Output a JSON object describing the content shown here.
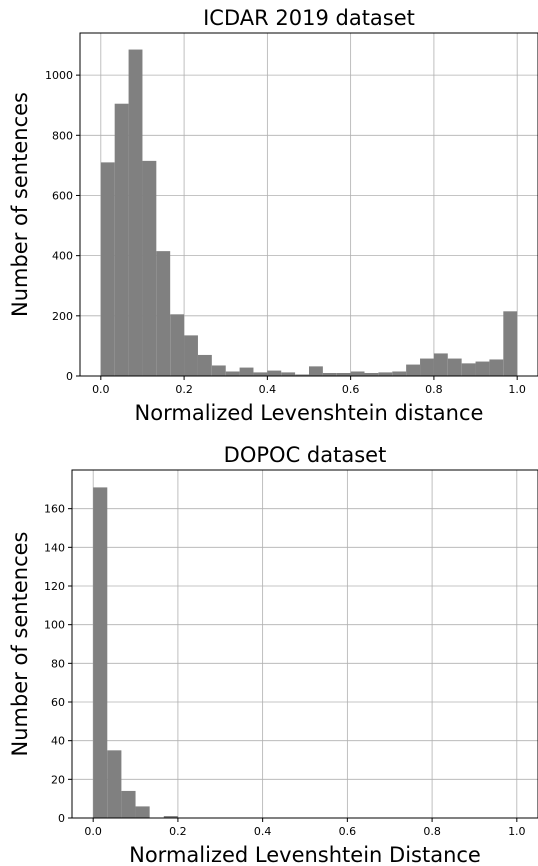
{
  "chart_data": [
    {
      "type": "bar",
      "title": "ICDAR 2019 dataset",
      "xlabel": "Normalized Levenshtein distance",
      "ylabel": "Number of sentences",
      "xlim": [
        -0.05,
        1.05
      ],
      "ylim": [
        0,
        1140
      ],
      "xticks": [
        "0.0",
        "0.2",
        "0.4",
        "0.6",
        "0.8",
        "1.0"
      ],
      "yticks": [
        "0",
        "200",
        "400",
        "600",
        "800",
        "1000"
      ],
      "bin_width": 0.0333,
      "grid": true,
      "bar_color": "#808080",
      "bins": [
        {
          "x": 0.0,
          "value": 710
        },
        {
          "x": 0.0333,
          "value": 905
        },
        {
          "x": 0.0667,
          "value": 1085
        },
        {
          "x": 0.1,
          "value": 715
        },
        {
          "x": 0.1333,
          "value": 415
        },
        {
          "x": 0.1667,
          "value": 205
        },
        {
          "x": 0.2,
          "value": 135
        },
        {
          "x": 0.2333,
          "value": 70
        },
        {
          "x": 0.2667,
          "value": 35
        },
        {
          "x": 0.3,
          "value": 15
        },
        {
          "x": 0.3333,
          "value": 28
        },
        {
          "x": 0.3667,
          "value": 12
        },
        {
          "x": 0.4,
          "value": 18
        },
        {
          "x": 0.4333,
          "value": 12
        },
        {
          "x": 0.4667,
          "value": 5
        },
        {
          "x": 0.5,
          "value": 32
        },
        {
          "x": 0.5333,
          "value": 10
        },
        {
          "x": 0.5667,
          "value": 10
        },
        {
          "x": 0.6,
          "value": 15
        },
        {
          "x": 0.6333,
          "value": 10
        },
        {
          "x": 0.6667,
          "value": 12
        },
        {
          "x": 0.7,
          "value": 15
        },
        {
          "x": 0.7333,
          "value": 38
        },
        {
          "x": 0.7667,
          "value": 58
        },
        {
          "x": 0.8,
          "value": 75
        },
        {
          "x": 0.8333,
          "value": 58
        },
        {
          "x": 0.8667,
          "value": 42
        },
        {
          "x": 0.9,
          "value": 48
        },
        {
          "x": 0.9333,
          "value": 55
        },
        {
          "x": 0.9667,
          "value": 215
        }
      ]
    },
    {
      "type": "bar",
      "title": "DOPOC dataset",
      "xlabel": "Normalized Levenshtein Distance",
      "ylabel": "Number of sentences",
      "xlim": [
        -0.05,
        1.05
      ],
      "ylim": [
        0,
        180
      ],
      "xticks": [
        "0.0",
        "0.2",
        "0.4",
        "0.6",
        "0.8",
        "1.0"
      ],
      "yticks": [
        "0",
        "20",
        "40",
        "60",
        "80",
        "100",
        "120",
        "140",
        "160"
      ],
      "bin_width": 0.0333,
      "grid": true,
      "bar_color": "#808080",
      "bins": [
        {
          "x": 0.0,
          "value": 171
        },
        {
          "x": 0.0333,
          "value": 35
        },
        {
          "x": 0.0667,
          "value": 14
        },
        {
          "x": 0.1,
          "value": 6
        },
        {
          "x": 0.1333,
          "value": 0
        },
        {
          "x": 0.1667,
          "value": 1
        }
      ]
    }
  ]
}
